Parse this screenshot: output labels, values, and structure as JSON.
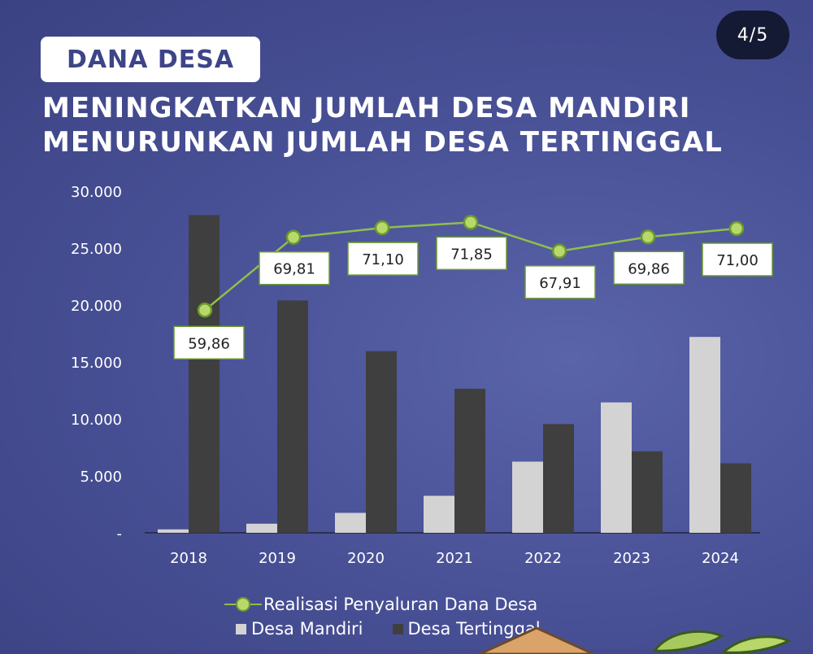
{
  "page_counter": "4/5",
  "badge": "DANA DESA",
  "headline": {
    "line1": "MENINGKATKAN JUMLAH DESA MANDIRI",
    "line2": "MENURUNKAN JUMLAH DESA TERTINGGAL"
  },
  "colors": {
    "desa_mandiri": "#d3d3d3",
    "desa_tertinggal": "#3f3f3f",
    "realisasi_line": "#8fbf4a"
  },
  "chart_data": {
    "type": "bar",
    "categories": [
      "2018",
      "2019",
      "2020",
      "2021",
      "2022",
      "2023",
      "2024"
    ],
    "ylim": [
      0,
      30000
    ],
    "y_ticks": [
      "-",
      "5.000",
      "10.000",
      "15.000",
      "20.000",
      "25.000",
      "30.000"
    ],
    "grid": false,
    "legend_position": "bottom",
    "series": [
      {
        "name": "Desa Mandiri",
        "values": [
          300,
          800,
          1750,
          3250,
          6250,
          11450,
          17200
        ]
      },
      {
        "name": "Desa Tertinggal",
        "values": [
          27900,
          20400,
          15950,
          12650,
          9550,
          7150,
          6100
        ]
      }
    ],
    "line_series": {
      "name": "Realisasi Penyaluran Dana Desa",
      "values": [
        59.86,
        69.81,
        71.1,
        71.85,
        67.91,
        69.86,
        71.0
      ],
      "labels": [
        "59,86",
        "69,81",
        "71,10",
        "71,85",
        "67,91",
        "69,86",
        "71,00"
      ]
    }
  },
  "legend": {
    "line_label": "Realisasi Penyaluran Dana Desa",
    "mandiri_label": "Desa Mandiri",
    "tertinggal_label": "Desa Tertinggal"
  }
}
